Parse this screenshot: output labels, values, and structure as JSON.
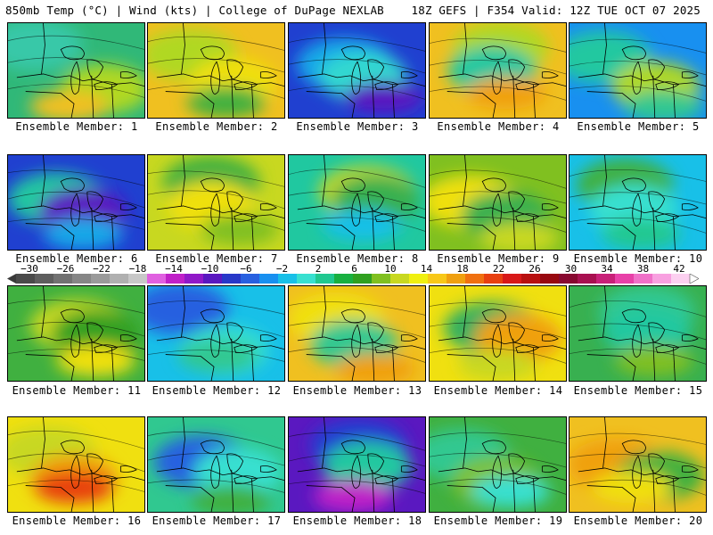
{
  "header": {
    "left_title": "850mb Temp (°C) | Wind (kts) | College of DuPage NEXLAB",
    "right_title": "18Z GEFS | F354 Valid: 12Z TUE OCT 07 2025"
  },
  "colorbar": {
    "tick_labels": [
      "-30",
      "-26",
      "-22",
      "-18",
      "-14",
      "-10",
      "-6",
      "-2",
      "2",
      "6",
      "10",
      "14",
      "18",
      "22",
      "26",
      "30",
      "34",
      "38",
      "42"
    ],
    "colors": [
      "#4a4a4a",
      "#5e5e5e",
      "#727272",
      "#868686",
      "#9a9a9a",
      "#b0b0b0",
      "#c8c8c8",
      "#e060e0",
      "#c020c8",
      "#9018c8",
      "#5a18c0",
      "#2838c8",
      "#2860e0",
      "#1890f0",
      "#18c0e8",
      "#38e0d0",
      "#20c890",
      "#18b040",
      "#30a020",
      "#80c020",
      "#c8d820",
      "#f0f010",
      "#f8c818",
      "#f0a010",
      "#f07010",
      "#e84010",
      "#d81818",
      "#b81010",
      "#980810",
      "#880830",
      "#a81050",
      "#c82078",
      "#e840a8",
      "#f070c8",
      "#f8a0e0",
      "#fcd0f0"
    ]
  },
  "panels": [
    {
      "label": "Ensemble Member: 1",
      "palette": [
        "#30b878",
        "#38c8a8",
        "#b0d820",
        "#f0c020"
      ]
    },
    {
      "label": "Ensemble Member: 2",
      "palette": [
        "#f0c020",
        "#b0d820",
        "#f0e010",
        "#40b040"
      ]
    },
    {
      "label": "Ensemble Member: 3",
      "palette": [
        "#2040d0",
        "#18a8e8",
        "#30d8d0",
        "#5a18c0"
      ]
    },
    {
      "label": "Ensemble Member: 4",
      "palette": [
        "#f0c020",
        "#b0d820",
        "#20c8a0",
        "#f0a010"
      ]
    },
    {
      "label": "Ensemble Member: 5",
      "palette": [
        "#1890f0",
        "#20c8a0",
        "#b0d820",
        "#30c890"
      ]
    },
    {
      "label": "Ensemble Member: 6",
      "palette": [
        "#2040d0",
        "#20c8a0",
        "#5a18c0",
        "#18a8e8"
      ]
    },
    {
      "label": "Ensemble Member: 7",
      "palette": [
        "#c8d820",
        "#40b040",
        "#f0e010",
        "#80c020"
      ]
    },
    {
      "label": "Ensemble Member: 8",
      "palette": [
        "#20c8a0",
        "#c8d820",
        "#38b050",
        "#18c0e8"
      ]
    },
    {
      "label": "Ensemble Member: 9",
      "palette": [
        "#80c020",
        "#f0e010",
        "#38b050",
        "#c8d820"
      ]
    },
    {
      "label": "Ensemble Member: 10",
      "palette": [
        "#18c0e8",
        "#40b040",
        "#38e0d0",
        "#20c890"
      ]
    },
    {
      "label": "Ensemble Member: 11",
      "palette": [
        "#40b040",
        "#c8d820",
        "#30a020",
        "#f0e010"
      ]
    },
    {
      "label": "Ensemble Member: 12",
      "palette": [
        "#18c0e8",
        "#2860e0",
        "#38e0d0",
        "#30c890"
      ]
    },
    {
      "label": "Ensemble Member: 13",
      "palette": [
        "#f0c020",
        "#f0e010",
        "#30c890",
        "#f0a010"
      ]
    },
    {
      "label": "Ensemble Member: 14",
      "palette": [
        "#f0e010",
        "#30b060",
        "#f0a010",
        "#c8d820"
      ]
    },
    {
      "label": "Ensemble Member: 15",
      "palette": [
        "#38b050",
        "#30c890",
        "#20c8a0",
        "#80c020"
      ]
    },
    {
      "label": "Ensemble Member: 16",
      "palette": [
        "#f0e010",
        "#c8d820",
        "#f0a010",
        "#e84010"
      ]
    },
    {
      "label": "Ensemble Member: 17",
      "palette": [
        "#30c890",
        "#2860e0",
        "#38e0d0",
        "#40b040"
      ]
    },
    {
      "label": "Ensemble Member: 18",
      "palette": [
        "#5a18c0",
        "#2040d0",
        "#20c8a0",
        "#c020c8"
      ]
    },
    {
      "label": "Ensemble Member: 19",
      "palette": [
        "#40b040",
        "#30c890",
        "#80c020",
        "#38e0d0"
      ]
    },
    {
      "label": "Ensemble Member: 20",
      "palette": [
        "#f0c020",
        "#f0a010",
        "#40b040",
        "#f0e010"
      ]
    }
  ]
}
